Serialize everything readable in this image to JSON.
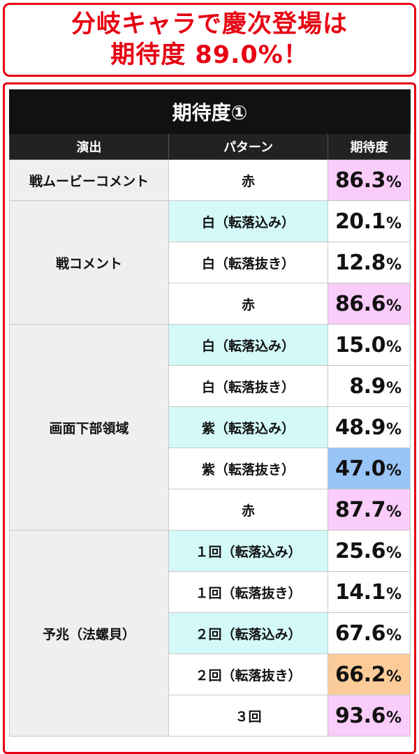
{
  "headline": {
    "line1": "分岐キャラで慶次登場は",
    "line2": "期待度 89.0%！"
  },
  "table": {
    "title": "期待度①",
    "headers": {
      "effect": "演出",
      "pattern": "パターン",
      "rate": "期待度"
    },
    "percent_sign": "%",
    "groups": [
      {
        "category": "戦ムービーコメント",
        "rows": [
          {
            "pattern": "赤",
            "value": "86.3",
            "pattern_bg": "white",
            "value_bg": "pink"
          }
        ]
      },
      {
        "category": "戦コメント",
        "rows": [
          {
            "pattern": "白（転落込み）",
            "value": "20.1",
            "pattern_bg": "cyan",
            "value_bg": "white"
          },
          {
            "pattern": "白（転落抜き）",
            "value": "12.8",
            "pattern_bg": "white",
            "value_bg": "white"
          },
          {
            "pattern": "赤",
            "value": "86.6",
            "pattern_bg": "white",
            "value_bg": "pink"
          }
        ]
      },
      {
        "category": "画面下部領域",
        "rows": [
          {
            "pattern": "白（転落込み）",
            "value": "15.0",
            "pattern_bg": "cyan",
            "value_bg": "white"
          },
          {
            "pattern": "白（転落抜き）",
            "value": "8.9",
            "pattern_bg": "white",
            "value_bg": "white"
          },
          {
            "pattern": "紫（転落込み）",
            "value": "48.9",
            "pattern_bg": "cyan",
            "value_bg": "white"
          },
          {
            "pattern": "紫（転落抜き）",
            "value": "47.0",
            "pattern_bg": "white",
            "value_bg": "blue"
          },
          {
            "pattern": "赤",
            "value": "87.7",
            "pattern_bg": "white",
            "value_bg": "pink"
          }
        ]
      },
      {
        "category": "予兆（法螺貝）",
        "rows": [
          {
            "pattern": "１回（転落込み）",
            "value": "25.6",
            "pattern_bg": "cyan",
            "value_bg": "white"
          },
          {
            "pattern": "１回（転落抜き）",
            "value": "14.1",
            "pattern_bg": "white",
            "value_bg": "white"
          },
          {
            "pattern": "２回（転落込み）",
            "value": "67.6",
            "pattern_bg": "cyan",
            "value_bg": "white"
          },
          {
            "pattern": "２回（転落抜き）",
            "value": "66.2",
            "pattern_bg": "white",
            "value_bg": "orange"
          },
          {
            "pattern": "３回",
            "value": "93.6",
            "pattern_bg": "white",
            "value_bg": "pink"
          }
        ]
      }
    ]
  },
  "colors": {
    "accent_red": "#e60012",
    "header_black": "#111111",
    "cyan": "#d4f9f9",
    "pink": "#f9ccf9",
    "blue": "#99c4f6",
    "orange": "#fbcc99",
    "category_gray": "#efefef"
  }
}
